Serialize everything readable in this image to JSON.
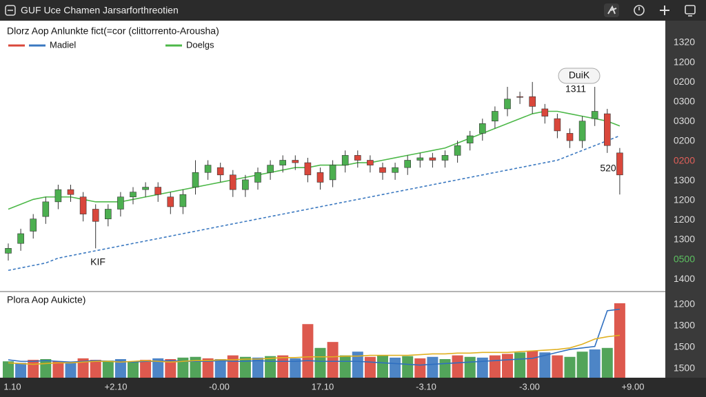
{
  "header": {
    "title": "GUF Uce Chamen Jarsarforthreotien"
  },
  "chart_data": [
    {
      "type": "candlestick",
      "title": "Dlorz Aop Anlunkte fict(=cor (clittorrento-Arousha)",
      "ylim": [
        0,
        100
      ],
      "up_color": "#4caf50",
      "down_color": "#d9473b",
      "open": [
        12,
        16,
        21,
        27,
        33,
        38,
        35,
        30,
        26,
        30,
        35,
        38,
        39,
        35,
        31,
        39,
        45,
        47,
        44,
        38,
        41,
        45,
        48,
        50,
        49,
        45,
        42,
        48,
        52,
        50,
        47,
        45,
        47,
        50,
        51,
        50,
        52,
        57,
        61,
        66,
        71,
        76,
        76,
        71,
        67,
        61,
        58,
        67,
        69,
        53
      ],
      "high": [
        16,
        22,
        28,
        35,
        40,
        40,
        37,
        32,
        32,
        37,
        39,
        41,
        41,
        37,
        38,
        50,
        50,
        49,
        46,
        44,
        47,
        50,
        52,
        52,
        51,
        47,
        50,
        54,
        54,
        52,
        49,
        49,
        52,
        53,
        53,
        54,
        58,
        62,
        67,
        72,
        80,
        78,
        82,
        73,
        69,
        63,
        68,
        80,
        71,
        55
      ],
      "low": [
        9,
        13,
        18,
        24,
        30,
        33,
        25,
        14,
        23,
        27,
        32,
        35,
        33,
        28,
        28,
        36,
        42,
        41,
        35,
        35,
        38,
        42,
        45,
        46,
        41,
        38,
        39,
        45,
        47,
        45,
        42,
        42,
        44,
        47,
        47,
        47,
        49,
        54,
        58,
        63,
        68,
        73,
        69,
        65,
        59,
        55,
        55,
        64,
        53,
        36
      ],
      "close": [
        14,
        20,
        26,
        33,
        38,
        36,
        28,
        25,
        30,
        35,
        37,
        39,
        36,
        31,
        36,
        45,
        48,
        44,
        38,
        42,
        45,
        48,
        50,
        49,
        44,
        41,
        48,
        52,
        50,
        48,
        45,
        47,
        50,
        51,
        50,
        52,
        56,
        60,
        65,
        70,
        75,
        76,
        72,
        68,
        62,
        58,
        66,
        70,
        56,
        44
      ],
      "series": [
        {
          "name": "Madiel",
          "color": "#3a78c0",
          "swatch_colors": [
            "#d9473b",
            "#3a78c0"
          ],
          "dashed": true,
          "values": [
            5,
            6,
            7,
            8,
            10,
            11,
            12,
            13,
            14,
            15,
            16,
            17,
            18,
            19,
            20,
            21,
            22,
            23,
            24,
            25,
            26,
            27,
            28,
            29,
            30,
            31,
            32,
            33,
            34,
            35,
            36,
            37,
            38,
            39,
            40,
            41,
            42,
            43,
            44,
            45,
            46,
            47,
            48,
            49,
            50,
            52,
            54,
            56,
            58,
            60
          ]
        },
        {
          "name": "Doelgs",
          "color": "#4cb848",
          "swatch_colors": [
            "#4cb848"
          ],
          "dashed": false,
          "values": [
            30,
            32,
            34,
            35,
            35,
            35,
            34,
            33,
            33,
            33,
            34,
            35,
            36,
            37,
            38,
            39,
            40,
            41,
            42,
            43,
            44,
            45,
            46,
            47,
            47,
            48,
            48,
            48,
            49,
            49,
            50,
            51,
            52,
            53,
            54,
            55,
            57,
            59,
            61,
            63,
            65,
            67,
            69,
            70,
            70,
            69,
            68,
            67,
            66,
            64
          ]
        }
      ],
      "annotations": [
        "DuiK",
        "1311",
        "520",
        "KIF"
      ],
      "y_labels": [
        {
          "text": "1320",
          "color": "#dddddd"
        },
        {
          "text": "1200",
          "color": "#dddddd"
        },
        {
          "text": "0200",
          "color": "#dddddd"
        },
        {
          "text": "0300",
          "color": "#dddddd"
        },
        {
          "text": "0300",
          "color": "#dddddd"
        },
        {
          "text": "0200",
          "color": "#dddddd"
        },
        {
          "text": "0200",
          "color": "#e0605a"
        },
        {
          "text": "1300",
          "color": "#dddddd"
        },
        {
          "text": "1200",
          "color": "#dddddd"
        },
        {
          "text": "1200",
          "color": "#dddddd"
        },
        {
          "text": "1300",
          "color": "#dddddd"
        },
        {
          "text": "0500",
          "color": "#5cc060"
        },
        {
          "text": "1400",
          "color": "#dddddd"
        }
      ]
    },
    {
      "type": "bar",
      "title": "Plora Aop Aukicte)",
      "ylim": [
        0,
        100
      ],
      "values": [
        22,
        20,
        24,
        25,
        22,
        20,
        26,
        24,
        23,
        25,
        22,
        24,
        26,
        25,
        27,
        28,
        26,
        25,
        30,
        28,
        27,
        29,
        30,
        26,
        72,
        40,
        48,
        30,
        35,
        28,
        30,
        27,
        29,
        26,
        28,
        25,
        30,
        28,
        27,
        30,
        32,
        34,
        36,
        34,
        30,
        28,
        35,
        38,
        40,
        100
      ],
      "colors": [
        "#3f9a48",
        "#3a78c0",
        "#d9473b",
        "#3f9a48",
        "#d9473b",
        "#3a78c0",
        "#d9473b",
        "#d9473b",
        "#3f9a48",
        "#3a78c0",
        "#3f9a48",
        "#d9473b",
        "#3a78c0",
        "#d9473b",
        "#3f9a48",
        "#3f9a48",
        "#d9473b",
        "#3a78c0",
        "#d9473b",
        "#3f9a48",
        "#3a78c0",
        "#3f9a48",
        "#d9473b",
        "#3a78c0",
        "#d9473b",
        "#3f9a48",
        "#d9473b",
        "#3f9a48",
        "#3a78c0",
        "#d9473b",
        "#3f9a48",
        "#3a78c0",
        "#3f9a48",
        "#d9473b",
        "#3a78c0",
        "#3f9a48",
        "#d9473b",
        "#3f9a48",
        "#3a78c0",
        "#d9473b",
        "#d9473b",
        "#3f9a48",
        "#d9473b",
        "#3a78c0",
        "#d9473b",
        "#3f9a48",
        "#3f9a48",
        "#3a78c0",
        "#3f9a48",
        "#d9473b"
      ],
      "series": [
        {
          "color": "#2f6fc0",
          "values": [
            24,
            22,
            22,
            23,
            22,
            21,
            22,
            23,
            22,
            22,
            21,
            22,
            22,
            23,
            22,
            22,
            22,
            23,
            22,
            22,
            23,
            22,
            22,
            22,
            23,
            22,
            22,
            22,
            22,
            21,
            20,
            19,
            18,
            17,
            18,
            19,
            20,
            21,
            22,
            23,
            24,
            25,
            26,
            30,
            34,
            38,
            40,
            42,
            90,
            92
          ]
        },
        {
          "color": "#e0b020",
          "values": [
            20,
            19,
            18,
            19,
            20,
            20,
            21,
            22,
            22,
            21,
            22,
            23,
            22,
            21,
            22,
            23,
            23,
            24,
            24,
            25,
            25,
            26,
            27,
            27,
            28,
            28,
            28,
            29,
            29,
            30,
            30,
            30,
            30,
            31,
            32,
            32,
            33,
            33,
            34,
            34,
            34,
            35,
            36,
            37,
            38,
            40,
            45,
            52,
            55,
            57
          ]
        }
      ],
      "y_labels": [
        "1200",
        "1300",
        "1500",
        "1500"
      ],
      "x_labels": [
        "1.10",
        "+2.10",
        "-0.00",
        "17.10",
        "-3.10",
        "-3.00",
        "+9.00"
      ]
    }
  ]
}
